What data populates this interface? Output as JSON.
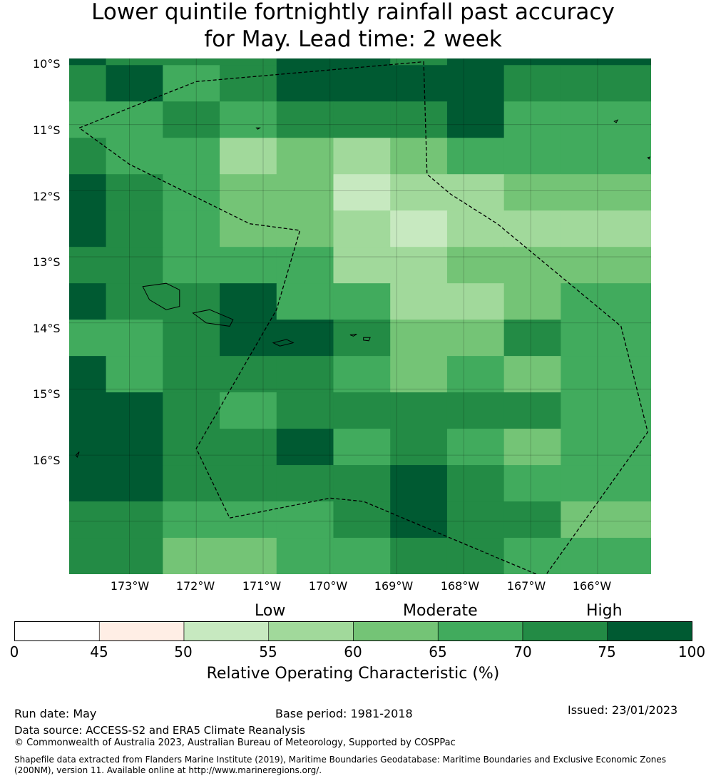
{
  "title": {
    "line1": "Lower quintile fortnightly rainfall past accuracy",
    "line2": "for May. Lead time: 2 week"
  },
  "map": {
    "lat_labels": [
      "10°S",
      "11°S",
      "12°S",
      "13°S",
      "14°S",
      "15°S",
      "16°S"
    ],
    "lon_labels": [
      "173°W",
      "172°W",
      "171°W",
      "170°W",
      "169°W",
      "168°W",
      "167°W",
      "166°W"
    ],
    "lon_range": [
      -173.9,
      -165.2
    ],
    "lat_range": [
      -10.0,
      -17.8
    ],
    "cell_grid": {
      "lon_edges": [
        -173.9,
        -173.35,
        -172.5,
        -171.65,
        -170.8,
        -169.95,
        -169.1,
        -168.25,
        -167.4,
        -166.55,
        -165.2
      ],
      "lat_edges": [
        -10.0,
        -10.1,
        -10.65,
        -11.2,
        -11.75,
        -12.3,
        -12.85,
        -13.4,
        -13.95,
        -14.5,
        -15.05,
        -15.6,
        -16.15,
        -16.7,
        -17.25,
        -17.8
      ],
      "roc_percent": [
        [
          75,
          70,
          70,
          70,
          75,
          75,
          70,
          75,
          75,
          75
        ],
        [
          70,
          75,
          65,
          70,
          75,
          75,
          75,
          75,
          70,
          70
        ],
        [
          65,
          65,
          70,
          65,
          70,
          70,
          70,
          75,
          65,
          65
        ],
        [
          70,
          65,
          65,
          55,
          60,
          55,
          60,
          65,
          65,
          65
        ],
        [
          75,
          70,
          65,
          60,
          60,
          50,
          55,
          55,
          60,
          60
        ],
        [
          75,
          70,
          65,
          60,
          60,
          55,
          50,
          55,
          55,
          55
        ],
        [
          70,
          70,
          65,
          65,
          65,
          55,
          55,
          60,
          60,
          60
        ],
        [
          75,
          70,
          70,
          75,
          65,
          65,
          55,
          55,
          60,
          65
        ],
        [
          65,
          65,
          70,
          75,
          75,
          70,
          60,
          60,
          70,
          65
        ],
        [
          75,
          65,
          70,
          70,
          70,
          65,
          60,
          65,
          60,
          65
        ],
        [
          75,
          75,
          70,
          65,
          70,
          70,
          70,
          70,
          70,
          65
        ],
        [
          75,
          75,
          70,
          70,
          75,
          65,
          70,
          65,
          60,
          65
        ],
        [
          75,
          75,
          70,
          70,
          70,
          70,
          75,
          70,
          65,
          65
        ],
        [
          70,
          70,
          65,
          65,
          65,
          70,
          75,
          70,
          70,
          60
        ],
        [
          70,
          70,
          60,
          60,
          65,
          65,
          70,
          70,
          65,
          65
        ]
      ]
    },
    "eez_boundary_lonlat": [
      [
        -173.75,
        -11.05
      ],
      [
        -172.0,
        -10.35
      ],
      [
        -168.6,
        -10.05
      ],
      [
        -168.55,
        -11.75
      ],
      [
        -168.2,
        -12.05
      ],
      [
        -167.5,
        -12.5
      ],
      [
        -165.65,
        -14.05
      ],
      [
        -165.25,
        -15.65
      ],
      [
        -166.8,
        -17.85
      ],
      [
        -169.5,
        -16.7
      ],
      [
        -170.0,
        -16.65
      ],
      [
        -171.5,
        -16.95
      ],
      [
        -172.0,
        -15.9
      ],
      [
        -170.8,
        -13.8
      ],
      [
        -170.45,
        -12.6
      ],
      [
        -171.2,
        -12.5
      ],
      [
        -173.0,
        -11.6
      ],
      [
        -173.75,
        -11.05
      ]
    ],
    "islands": [
      {
        "name": "Savai'i",
        "lonlat": [
          [
            -172.8,
            -13.45
          ],
          [
            -172.45,
            -13.4
          ],
          [
            -172.25,
            -13.5
          ],
          [
            -172.25,
            -13.75
          ],
          [
            -172.45,
            -13.8
          ],
          [
            -172.7,
            -13.65
          ]
        ]
      },
      {
        "name": "Upolu",
        "lonlat": [
          [
            -172.05,
            -13.85
          ],
          [
            -171.8,
            -13.8
          ],
          [
            -171.45,
            -13.95
          ],
          [
            -171.5,
            -14.05
          ],
          [
            -171.85,
            -14.0
          ]
        ]
      },
      {
        "name": "Tutuila",
        "lonlat": [
          [
            -170.85,
            -14.3
          ],
          [
            -170.65,
            -14.25
          ],
          [
            -170.55,
            -14.3
          ],
          [
            -170.75,
            -14.35
          ]
        ]
      },
      {
        "name": "Ofu",
        "lonlat": [
          [
            -169.7,
            -14.18
          ],
          [
            -169.6,
            -14.17
          ],
          [
            -169.65,
            -14.2
          ]
        ]
      },
      {
        "name": "Ta'u",
        "lonlat": [
          [
            -169.5,
            -14.22
          ],
          [
            -169.4,
            -14.22
          ],
          [
            -169.42,
            -14.27
          ],
          [
            -169.5,
            -14.26
          ]
        ]
      },
      {
        "name": "Swains",
        "lonlat": [
          [
            -171.1,
            -11.05
          ],
          [
            -171.05,
            -11.05
          ],
          [
            -171.08,
            -11.07
          ]
        ]
      },
      {
        "name": "Nukunonu",
        "lonlat": [
          [
            -165.75,
            -10.95
          ],
          [
            -165.7,
            -10.93
          ],
          [
            -165.72,
            -10.97
          ]
        ]
      },
      {
        "name": "Fakaofo",
        "lonlat": [
          [
            -165.25,
            -11.5
          ],
          [
            -165.22,
            -11.49
          ],
          [
            -165.23,
            -11.52
          ]
        ]
      },
      {
        "name": "Niuatoputapu",
        "lonlat": [
          [
            -173.8,
            -16.0
          ],
          [
            -173.75,
            -15.95
          ],
          [
            -173.78,
            -16.03
          ]
        ]
      }
    ]
  },
  "colorbar": {
    "categories": [
      "Low",
      "Moderate",
      "High"
    ],
    "ticks": [
      "0",
      "45",
      "50",
      "55",
      "60",
      "65",
      "70",
      "75",
      "100"
    ],
    "colors": [
      "#ffffff",
      "#ffeee5",
      "#c7e9c0",
      "#a1d99b",
      "#74c476",
      "#41ab5d",
      "#238b45",
      "#005a32"
    ],
    "label": "Relative Operating Characteristic (%)"
  },
  "footer": {
    "run_date": "Run date: May",
    "base_period": "Base period: 1981-2018",
    "issued": "Issued: 23/01/2023",
    "data_source": "Data source: ACCESS-S2 and ERA5 Climate Reanalysis",
    "copyright": "© Commonwealth of Australia 2023, Australian Bureau of Meteorology, Supported by COSPPac",
    "shapefile": "Shapefile data extracted from Flanders Marine Institute (2019), Maritime Boundaries Geodatabase: Maritime Boundaries and Exclusive Economic Zones (200NM), version 11. Available online at http://www.marineregions.org/."
  }
}
